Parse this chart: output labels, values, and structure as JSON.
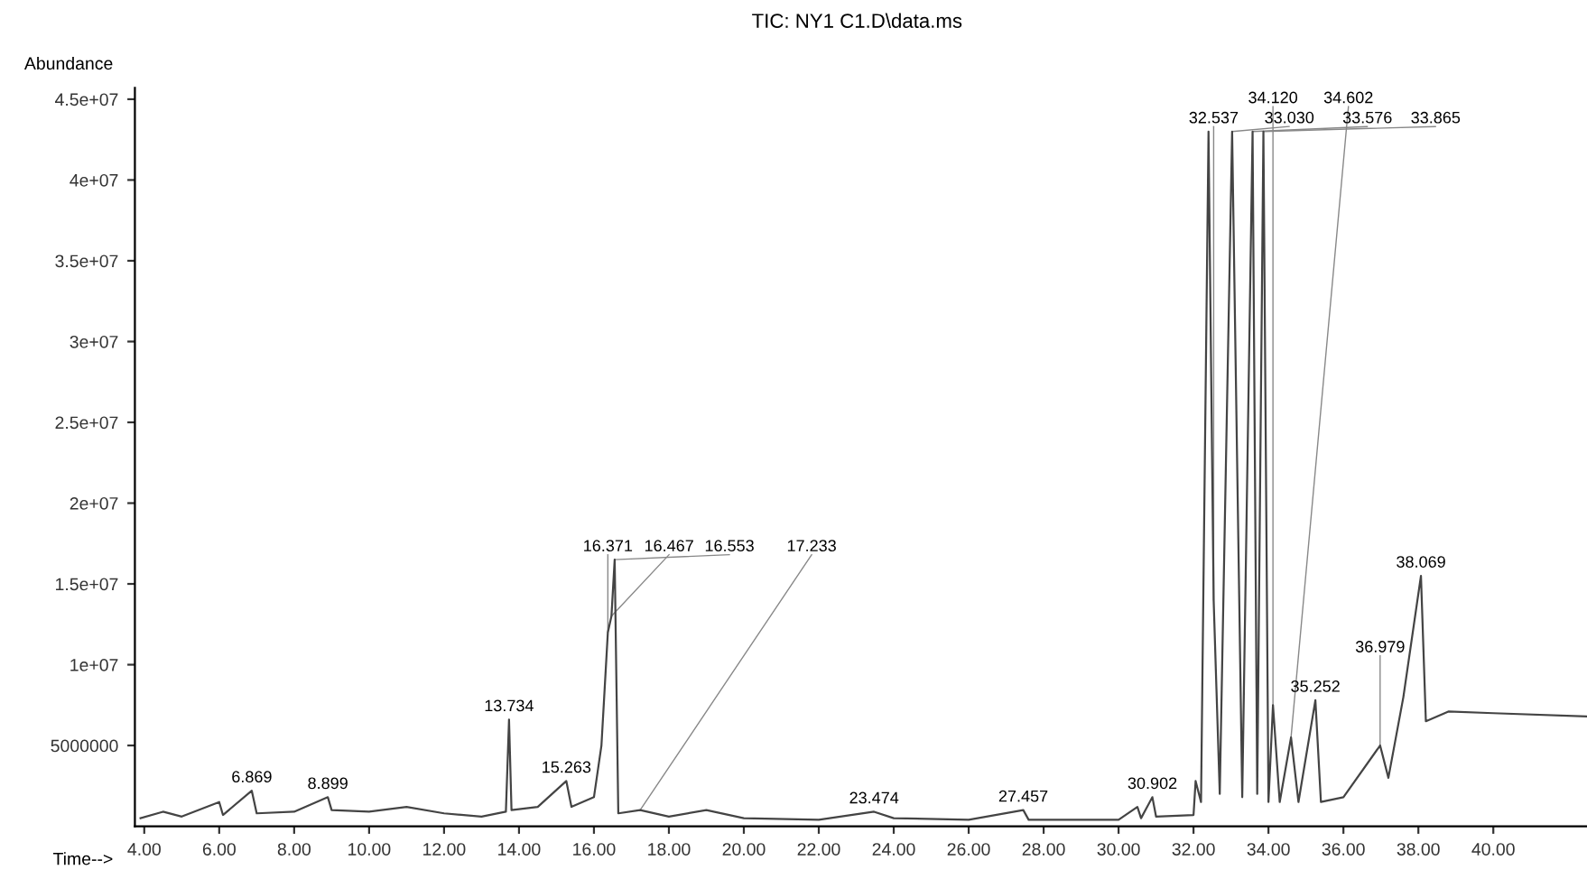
{
  "chart_data": {
    "type": "line",
    "title": "TIC: NY1 C1.D\\data.ms",
    "xlabel": "Time-->",
    "ylabel": "Abundance",
    "xlim": [
      3.75,
      42.5
    ],
    "ylim": [
      0,
      45700000
    ],
    "xticks": [
      {
        "value": 4,
        "label": "4.00"
      },
      {
        "value": 6,
        "label": "6.00"
      },
      {
        "value": 8,
        "label": "8.00"
      },
      {
        "value": 10,
        "label": "10.00"
      },
      {
        "value": 12,
        "label": "12.00"
      },
      {
        "value": 14,
        "label": "14.00"
      },
      {
        "value": 16,
        "label": "16.00"
      },
      {
        "value": 18,
        "label": "18.00"
      },
      {
        "value": 20,
        "label": "20.00"
      },
      {
        "value": 22,
        "label": "22.00"
      },
      {
        "value": 24,
        "label": "24.00"
      },
      {
        "value": 26,
        "label": "26.00"
      },
      {
        "value": 28,
        "label": "28.00"
      },
      {
        "value": 30,
        "label": "30.00"
      },
      {
        "value": 32,
        "label": "32.00"
      },
      {
        "value": 34,
        "label": "34.00"
      },
      {
        "value": 36,
        "label": "36.00"
      },
      {
        "value": 38,
        "label": "38.00"
      },
      {
        "value": 40,
        "label": "40.00"
      }
    ],
    "yticks": [
      5000000,
      {
        "value": 10000000,
        "label": "1e+07"
      },
      {
        "value": 15000000,
        "label": "1.5e+07"
      },
      {
        "value": 20000000,
        "label": "2e+07"
      },
      {
        "value": 25000000,
        "label": "2.5e+07"
      },
      {
        "value": 30000000,
        "label": "3e+07"
      },
      {
        "value": 35000000,
        "label": "3.5e+07"
      },
      {
        "value": 40000000,
        "label": "4e+07"
      },
      {
        "value": 45000000,
        "label": "4.5e+07"
      }
    ],
    "grid": false,
    "legend": false,
    "marker": "none",
    "line_style": "solid",
    "series": [
      {
        "color": "#444444",
        "x": [
          3.9,
          4.5,
          5,
          6.0,
          6.1,
          6.869,
          7,
          8,
          8.899,
          9,
          10,
          11,
          12,
          13,
          13.65,
          13.734,
          13.8,
          14.5,
          15.263,
          15.4,
          16.0,
          16.2,
          16.371,
          16.467,
          16.553,
          16.65,
          17.233,
          18,
          19,
          20,
          22,
          23.474,
          24,
          26,
          27.457,
          27.6,
          30,
          30.502,
          30.6,
          30.902,
          31.0,
          32.0,
          32.056,
          32.2,
          32.4,
          32.537,
          32.7,
          33.03,
          33.3,
          33.576,
          33.7,
          33.865,
          34.0,
          34.12,
          34.3,
          34.602,
          34.8,
          35.252,
          35.4,
          36.0,
          36.979,
          37.2,
          37.6,
          38.069,
          38.2,
          38.8,
          40,
          42.5
        ],
        "values": [
          500000,
          900000,
          600000,
          1500000,
          700000,
          2200000,
          800000,
          900000,
          1800000,
          1000000,
          900000,
          1200000,
          800000,
          600000,
          900000,
          6600000,
          1000000,
          1200000,
          2800000,
          1200000,
          1800000,
          5000000,
          12000000,
          13000000,
          16500000,
          800000,
          1000000,
          600000,
          1000000,
          500000,
          400000,
          900000,
          500000,
          400000,
          1000000,
          400000,
          400000,
          1200000,
          500000,
          1800000,
          600000,
          700000,
          2800000,
          1500000,
          43000000,
          14000000,
          2000000,
          43000000,
          1800000,
          43000000,
          2000000,
          43000000,
          1500000,
          7500000,
          1500000,
          5500000,
          1500000,
          7800000,
          1500000,
          1800000,
          5000000,
          3000000,
          8000000,
          15500000,
          6500000,
          7100000,
          7000000,
          6800000
        ]
      }
    ],
    "annotations": [
      {
        "text": "6.869",
        "x": 6.869,
        "y": 2200000
      },
      {
        "text": "8.899",
        "x": 8.899,
        "y": 1800000
      },
      {
        "text": "13.734",
        "x": 13.734,
        "y": 6600000
      },
      {
        "text": "15.263",
        "x": 15.263,
        "y": 2800000
      },
      {
        "text": "16.371",
        "x": 16.371,
        "y": 12000000
      },
      {
        "text": "16.467",
        "x": 16.467,
        "y": 13000000
      },
      {
        "text": "16.553",
        "x": 16.553,
        "y": 16500000
      },
      {
        "text": "17.233",
        "x": 17.233,
        "y": 1000000
      },
      {
        "text": "23.474",
        "x": 23.474,
        "y": 900000
      },
      {
        "text": "27.457",
        "x": 27.457,
        "y": 1000000
      },
      {
        "text": "30.902",
        "x": 30.902,
        "y": 1800000
      },
      {
        "text": "32.537",
        "x": 32.537,
        "y": 14000000
      },
      {
        "text": "33.030",
        "x": 33.03,
        "y": 43000000
      },
      {
        "text": "33.576",
        "x": 33.576,
        "y": 43000000
      },
      {
        "text": "33.865",
        "x": 33.865,
        "y": 43000000
      },
      {
        "text": "34.120",
        "x": 34.12,
        "y": 7500000
      },
      {
        "text": "34.602",
        "x": 34.602,
        "y": 5500000
      },
      {
        "text": "35.252",
        "x": 35.252,
        "y": 7800000
      },
      {
        "text": "36.979",
        "x": 36.979,
        "y": 5000000
      },
      {
        "text": "38.069",
        "x": 38.069,
        "y": 15500000
      }
    ]
  }
}
